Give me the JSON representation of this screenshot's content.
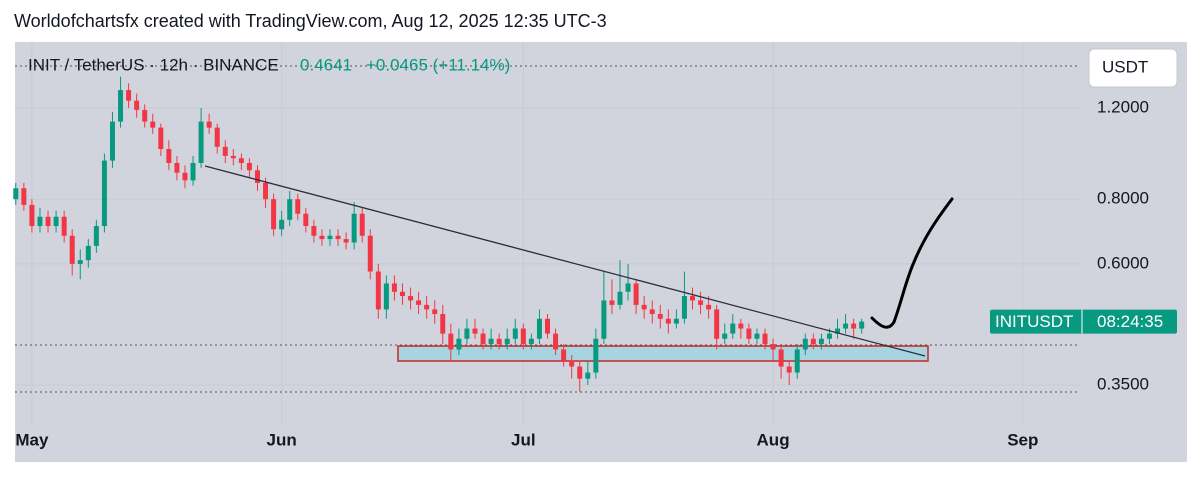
{
  "chart_data": {
    "type": "candlestick",
    "credit": "Worldofchartsfx created with TradingView.com, Aug 12, 2025 12:35 UTC-3",
    "title": "INIT / TetherUS · 12h · BINANCE",
    "last_price": 0.4641,
    "change": "+0.0465 (+11.14%)",
    "currency": "USDT",
    "price_label": {
      "symbol": "INITUSDT",
      "countdown": "08:24:35"
    },
    "colors": {
      "up": "#089981",
      "down": "#f23645"
    },
    "log_scale": true,
    "grid": true,
    "xlim": [
      -0.1,
      132.1
    ],
    "xticks": [
      {
        "value": 2,
        "label": "May"
      },
      {
        "value": 33,
        "label": "Jun"
      },
      {
        "value": 63,
        "label": "Jul"
      },
      {
        "value": 94,
        "label": "Aug"
      },
      {
        "value": 125,
        "label": "Sep"
      }
    ],
    "ylim": [
      0.293,
      1.61
    ],
    "yticks": [
      {
        "value": 0.35,
        "label": "0.3500"
      },
      {
        "value": 0.6,
        "label": "0.6000"
      },
      {
        "value": 0.8,
        "label": "0.8000"
      },
      {
        "value": 1.2,
        "label": "1.2000"
      }
    ],
    "candles": [
      [
        0.8,
        0.86,
        0.78,
        0.84
      ],
      [
        0.84,
        0.86,
        0.76,
        0.78
      ],
      [
        0.78,
        0.8,
        0.69,
        0.71
      ],
      [
        0.71,
        0.77,
        0.69,
        0.74
      ],
      [
        0.74,
        0.76,
        0.69,
        0.71
      ],
      [
        0.71,
        0.76,
        0.69,
        0.74
      ],
      [
        0.74,
        0.76,
        0.66,
        0.68
      ],
      [
        0.68,
        0.7,
        0.57,
        0.6
      ],
      [
        0.6,
        0.64,
        0.56,
        0.61
      ],
      [
        0.61,
        0.67,
        0.59,
        0.65
      ],
      [
        0.65,
        0.73,
        0.63,
        0.71
      ],
      [
        0.71,
        0.98,
        0.69,
        0.95
      ],
      [
        0.95,
        1.18,
        0.92,
        1.13
      ],
      [
        1.13,
        1.38,
        1.1,
        1.3
      ],
      [
        1.3,
        1.34,
        1.2,
        1.24
      ],
      [
        1.24,
        1.28,
        1.15,
        1.19
      ],
      [
        1.19,
        1.22,
        1.1,
        1.13
      ],
      [
        1.13,
        1.17,
        1.07,
        1.1
      ],
      [
        1.1,
        1.12,
        0.97,
        1.0
      ],
      [
        1.0,
        1.04,
        0.91,
        0.94
      ],
      [
        0.94,
        0.97,
        0.87,
        0.9
      ],
      [
        0.9,
        0.93,
        0.84,
        0.87
      ],
      [
        0.87,
        0.97,
        0.85,
        0.94
      ],
      [
        0.94,
        1.2,
        0.92,
        1.13
      ],
      [
        1.13,
        1.17,
        1.07,
        1.1
      ],
      [
        1.1,
        1.12,
        0.98,
        1.01
      ],
      [
        1.01,
        1.04,
        0.94,
        0.97
      ],
      [
        0.97,
        1.0,
        0.93,
        0.96
      ],
      [
        0.96,
        0.98,
        0.91,
        0.94
      ],
      [
        0.94,
        0.96,
        0.88,
        0.91
      ],
      [
        0.91,
        0.93,
        0.83,
        0.86
      ],
      [
        0.86,
        0.88,
        0.77,
        0.8
      ],
      [
        0.8,
        0.82,
        0.68,
        0.7
      ],
      [
        0.7,
        0.76,
        0.68,
        0.73
      ],
      [
        0.73,
        0.83,
        0.71,
        0.8
      ],
      [
        0.8,
        0.82,
        0.73,
        0.75
      ],
      [
        0.75,
        0.77,
        0.69,
        0.71
      ],
      [
        0.71,
        0.73,
        0.66,
        0.68
      ],
      [
        0.68,
        0.7,
        0.65,
        0.67
      ],
      [
        0.67,
        0.7,
        0.65,
        0.68
      ],
      [
        0.68,
        0.7,
        0.65,
        0.67
      ],
      [
        0.67,
        0.69,
        0.64,
        0.66
      ],
      [
        0.66,
        0.79,
        0.64,
        0.75
      ],
      [
        0.75,
        0.77,
        0.66,
        0.68
      ],
      [
        0.68,
        0.7,
        0.56,
        0.58
      ],
      [
        0.58,
        0.6,
        0.47,
        0.49
      ],
      [
        0.49,
        0.57,
        0.47,
        0.55
      ],
      [
        0.55,
        0.57,
        0.51,
        0.53
      ],
      [
        0.53,
        0.55,
        0.5,
        0.52
      ],
      [
        0.52,
        0.54,
        0.49,
        0.51
      ],
      [
        0.51,
        0.53,
        0.48,
        0.5
      ],
      [
        0.5,
        0.52,
        0.47,
        0.49
      ],
      [
        0.49,
        0.51,
        0.46,
        0.48
      ],
      [
        0.48,
        0.5,
        0.42,
        0.44
      ],
      [
        0.44,
        0.46,
        0.39,
        0.41
      ],
      [
        0.41,
        0.45,
        0.4,
        0.43
      ],
      [
        0.43,
        0.47,
        0.42,
        0.45
      ],
      [
        0.45,
        0.47,
        0.43,
        0.44
      ],
      [
        0.44,
        0.45,
        0.41,
        0.42
      ],
      [
        0.42,
        0.45,
        0.41,
        0.43
      ],
      [
        0.43,
        0.44,
        0.41,
        0.42
      ],
      [
        0.42,
        0.45,
        0.41,
        0.43
      ],
      [
        0.43,
        0.47,
        0.42,
        0.45
      ],
      [
        0.45,
        0.46,
        0.41,
        0.42
      ],
      [
        0.42,
        0.44,
        0.41,
        0.43
      ],
      [
        0.43,
        0.49,
        0.42,
        0.47
      ],
      [
        0.47,
        0.48,
        0.43,
        0.44
      ],
      [
        0.44,
        0.45,
        0.4,
        0.41
      ],
      [
        0.41,
        0.42,
        0.38,
        0.39
      ],
      [
        0.39,
        0.4,
        0.36,
        0.38
      ],
      [
        0.38,
        0.39,
        0.34,
        0.36
      ],
      [
        0.36,
        0.39,
        0.35,
        0.37
      ],
      [
        0.37,
        0.45,
        0.36,
        0.43
      ],
      [
        0.43,
        0.58,
        0.42,
        0.51
      ],
      [
        0.51,
        0.56,
        0.48,
        0.5
      ],
      [
        0.5,
        0.61,
        0.49,
        0.53
      ],
      [
        0.53,
        0.6,
        0.51,
        0.55
      ],
      [
        0.55,
        0.56,
        0.48,
        0.5
      ],
      [
        0.5,
        0.52,
        0.47,
        0.49
      ],
      [
        0.49,
        0.51,
        0.46,
        0.48
      ],
      [
        0.48,
        0.5,
        0.45,
        0.47
      ],
      [
        0.47,
        0.49,
        0.44,
        0.46
      ],
      [
        0.46,
        0.49,
        0.45,
        0.47
      ],
      [
        0.47,
        0.58,
        0.46,
        0.52
      ],
      [
        0.52,
        0.54,
        0.49,
        0.51
      ],
      [
        0.51,
        0.53,
        0.48,
        0.5
      ],
      [
        0.5,
        0.52,
        0.47,
        0.49
      ],
      [
        0.49,
        0.5,
        0.41,
        0.43
      ],
      [
        0.43,
        0.46,
        0.42,
        0.44
      ],
      [
        0.44,
        0.48,
        0.43,
        0.46
      ],
      [
        0.46,
        0.47,
        0.43,
        0.45
      ],
      [
        0.45,
        0.46,
        0.42,
        0.43
      ],
      [
        0.43,
        0.45,
        0.42,
        0.44
      ],
      [
        0.44,
        0.45,
        0.41,
        0.42
      ],
      [
        0.42,
        0.43,
        0.39,
        0.41
      ],
      [
        0.41,
        0.42,
        0.36,
        0.38
      ],
      [
        0.38,
        0.39,
        0.35,
        0.37
      ],
      [
        0.37,
        0.42,
        0.36,
        0.41
      ],
      [
        0.41,
        0.44,
        0.4,
        0.43
      ],
      [
        0.43,
        0.44,
        0.41,
        0.42
      ],
      [
        0.42,
        0.44,
        0.41,
        0.43
      ],
      [
        0.43,
        0.45,
        0.42,
        0.44
      ],
      [
        0.44,
        0.47,
        0.43,
        0.45
      ],
      [
        0.45,
        0.48,
        0.44,
        0.46
      ],
      [
        0.46,
        0.47,
        0.43,
        0.45
      ],
      [
        0.45,
        0.47,
        0.44,
        0.4641
      ]
    ]
  }
}
